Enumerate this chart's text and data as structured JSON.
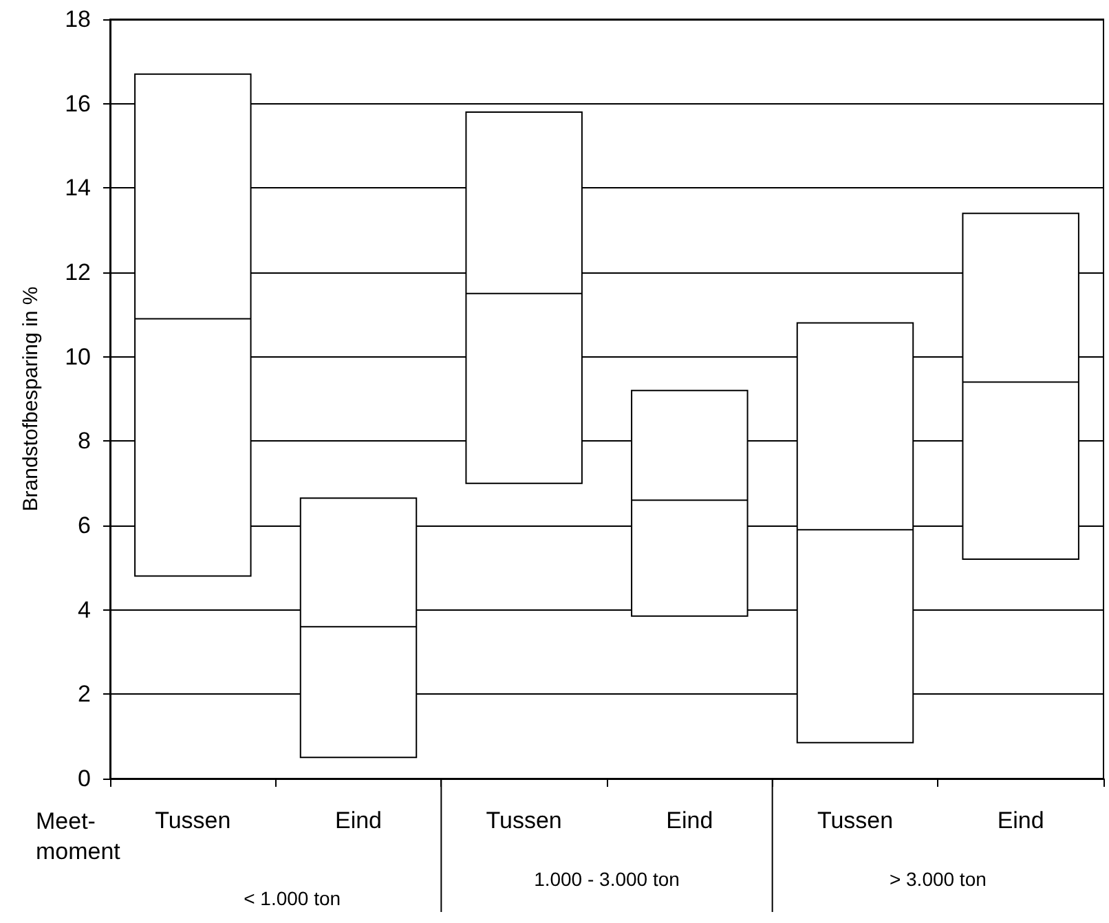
{
  "chart_data": {
    "type": "box",
    "ylabel": "Brandstofbesparing in %",
    "categories": [
      "Tussen",
      "Eind",
      "Tussen",
      "Eind",
      "Tussen",
      "Eind"
    ],
    "boxes": [
      {
        "low": 4.8,
        "q1": 4.8,
        "median": 10.9,
        "q3": 16.7,
        "high": 16.7
      },
      {
        "low": 0.5,
        "q1": 0.5,
        "median": 3.6,
        "q3": 6.65,
        "high": 6.65
      },
      {
        "low": 7.0,
        "q1": 7.0,
        "median": 11.5,
        "q3": 15.8,
        "high": 15.8
      },
      {
        "low": 3.85,
        "q1": 3.85,
        "median": 6.6,
        "q3": 9.2,
        "high": 9.2
      },
      {
        "low": 0.85,
        "q1": 0.85,
        "median": 5.9,
        "q3": 10.8,
        "high": 10.8
      },
      {
        "low": 5.2,
        "q1": 5.2,
        "median": 9.4,
        "q3": 13.4,
        "high": 13.4
      }
    ],
    "color": "#000000",
    "ylim": [
      0,
      18
    ],
    "yticks": [
      0,
      2,
      4,
      6,
      8,
      10,
      12,
      14,
      16,
      18
    ],
    "grid": "y",
    "annotations": [
      "Meet-\nmoment",
      "< 1.000 ton",
      "1.000 - 3.000 ton",
      "> 3.000 ton"
    ]
  }
}
